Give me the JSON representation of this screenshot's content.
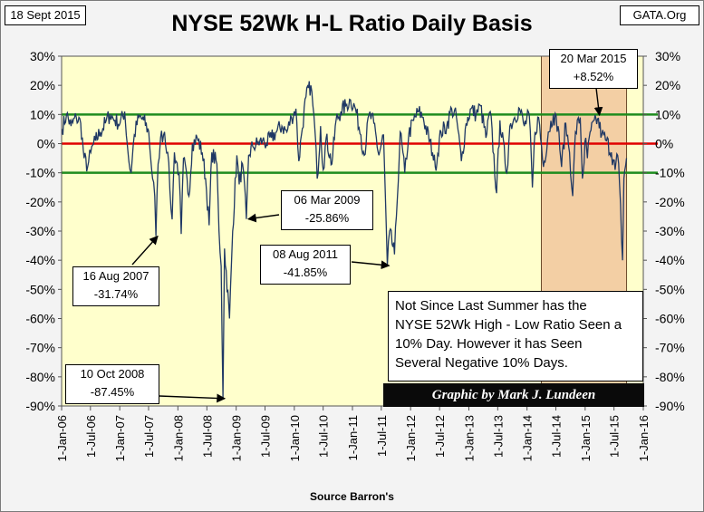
{
  "header": {
    "date": "18 Sept 2015",
    "site": "GATA.Org",
    "title": "NYSE 52Wk H-L Ratio Daily Basis",
    "source": "Source Barron's"
  },
  "annotations": {
    "a2007_date": "16 Aug 2007",
    "a2007_value": "-31.74%",
    "a2008_date": "10 Oct 2008",
    "a2008_value": "-87.45%",
    "a2009_date": "06 Mar 2009",
    "a2009_value": "-25.86%",
    "a2011_date": "08 Aug 2011",
    "a2011_value": "-41.85%",
    "a2015_date": "20 Mar 2015",
    "a2015_value": "+8.52%",
    "note_lines": [
      "Not Since Last Summer  has the",
      "NYSE 52Wk High - Low Ratio Seen a",
      "10% Day.  However it has Seen",
      "Several  Negative 10% Days."
    ],
    "credit": "Graphic by Mark J. Lundeen"
  },
  "colors": {
    "plot_bg": "#ffffcc",
    "shade_bg": "#f3cfa4",
    "series": "#1f3864",
    "zero_line": "#e00000",
    "ten_line": "#1e8c1e",
    "frame_bg": "#f3f3f3"
  },
  "chart_data": {
    "type": "line",
    "title": "NYSE 52Wk H-L Ratio Daily Basis",
    "xlabel": "",
    "ylabel": "",
    "x_unit": "date",
    "ylim": [
      -90,
      30
    ],
    "yticks": [
      30,
      20,
      10,
      0,
      -10,
      -20,
      -30,
      -40,
      -50,
      -60,
      -70,
      -80,
      -90
    ],
    "ytick_labels": [
      "30%",
      "20%",
      "10%",
      "0%",
      "-10%",
      "-20%",
      "-30%",
      "-40%",
      "-50%",
      "-60%",
      "-70%",
      "-80%",
      "-90%"
    ],
    "xlim": [
      "2006-01-01",
      "2016-01-01"
    ],
    "xticks": [
      "2006-01-01",
      "2006-07-01",
      "2007-01-01",
      "2007-07-01",
      "2008-01-01",
      "2008-07-01",
      "2009-01-01",
      "2009-07-01",
      "2010-01-01",
      "2010-07-01",
      "2011-01-01",
      "2011-07-01",
      "2012-01-01",
      "2012-07-01",
      "2013-01-01",
      "2013-07-01",
      "2014-01-01",
      "2014-07-01",
      "2015-01-01",
      "2015-07-01",
      "2016-01-01"
    ],
    "xtick_labels": [
      "1-Jan-06",
      "1-Jul-06",
      "1-Jan-07",
      "1-Jul-07",
      "1-Jan-08",
      "1-Jul-08",
      "1-Jan-09",
      "1-Jul-09",
      "1-Jan-10",
      "1-Jul-10",
      "1-Jan-11",
      "1-Jul-11",
      "1-Jan-12",
      "1-Jul-12",
      "1-Jan-13",
      "1-Jul-13",
      "1-Jan-14",
      "1-Jul-14",
      "1-Jan-15",
      "1-Jul-15",
      "1-Jan-16"
    ],
    "reference_lines": [
      {
        "y": 10,
        "color": "#1e8c1e"
      },
      {
        "y": 0,
        "color": "#e00000"
      },
      {
        "y": -10,
        "color": "#1e8c1e"
      }
    ],
    "shaded_region": {
      "from": "2014-04-01",
      "to": "2015-09-18",
      "color": "#f3cfa4"
    },
    "series": [
      {
        "color": "#1f3864",
        "points": [
          [
            "2006-01-03",
            5
          ],
          [
            "2006-02-01",
            10
          ],
          [
            "2006-03-01",
            6
          ],
          [
            "2006-04-03",
            9
          ],
          [
            "2006-05-01",
            7
          ],
          [
            "2006-05-22",
            -5
          ],
          [
            "2006-06-13",
            -8
          ],
          [
            "2006-07-03",
            -3
          ],
          [
            "2006-08-01",
            1
          ],
          [
            "2006-09-01",
            4
          ],
          [
            "2006-10-02",
            7
          ],
          [
            "2006-11-01",
            10
          ],
          [
            "2006-12-01",
            8
          ],
          [
            "2007-01-03",
            7
          ],
          [
            "2007-02-01",
            11
          ],
          [
            "2007-02-27",
            -6
          ],
          [
            "2007-03-14",
            -10
          ],
          [
            "2007-04-02",
            3
          ],
          [
            "2007-05-01",
            9
          ],
          [
            "2007-06-01",
            8
          ],
          [
            "2007-07-02",
            4
          ],
          [
            "2007-07-26",
            -12
          ],
          [
            "2007-08-09",
            -18
          ],
          [
            "2007-08-16",
            -31.74
          ],
          [
            "2007-08-30",
            -7
          ],
          [
            "2007-09-14",
            2
          ],
          [
            "2007-10-09",
            4
          ],
          [
            "2007-10-29",
            -3
          ],
          [
            "2007-11-12",
            -16
          ],
          [
            "2007-11-26",
            -26
          ],
          [
            "2007-12-10",
            -3
          ],
          [
            "2008-01-08",
            -10
          ],
          [
            "2008-01-22",
            -31
          ],
          [
            "2008-02-05",
            -5
          ],
          [
            "2008-03-10",
            -18
          ],
          [
            "2008-04-01",
            0
          ],
          [
            "2008-05-01",
            2
          ],
          [
            "2008-06-02",
            -3
          ],
          [
            "2008-06-23",
            -12
          ],
          [
            "2008-07-15",
            -28
          ],
          [
            "2008-08-01",
            -3
          ],
          [
            "2008-09-02",
            -7
          ],
          [
            "2008-09-15",
            -30
          ],
          [
            "2008-09-29",
            -42
          ],
          [
            "2008-10-10",
            -87.45
          ],
          [
            "2008-10-20",
            -36
          ],
          [
            "2008-11-20",
            -60
          ],
          [
            "2008-12-10",
            -30
          ],
          [
            "2009-01-05",
            -4
          ],
          [
            "2009-01-20",
            -14
          ],
          [
            "2009-02-10",
            -7
          ],
          [
            "2009-03-06",
            -25.86
          ],
          [
            "2009-03-20",
            -4
          ],
          [
            "2009-04-15",
            -1
          ],
          [
            "2009-05-15",
            0
          ],
          [
            "2009-06-15",
            1
          ],
          [
            "2009-07-10",
            0
          ],
          [
            "2009-08-10",
            2
          ],
          [
            "2009-09-10",
            4
          ],
          [
            "2009-10-15",
            6
          ],
          [
            "2009-11-15",
            4
          ],
          [
            "2009-12-15",
            9
          ],
          [
            "2010-01-11",
            12
          ],
          [
            "2010-01-29",
            -6
          ],
          [
            "2010-02-15",
            3
          ],
          [
            "2010-03-15",
            16
          ],
          [
            "2010-04-15",
            20
          ],
          [
            "2010-05-10",
            5
          ],
          [
            "2010-05-25",
            -12
          ],
          [
            "2010-06-15",
            6
          ],
          [
            "2010-07-01",
            -9
          ],
          [
            "2010-07-20",
            2
          ],
          [
            "2010-08-25",
            -7
          ],
          [
            "2010-09-20",
            8
          ],
          [
            "2010-10-20",
            11
          ],
          [
            "2010-11-20",
            13
          ],
          [
            "2010-12-20",
            15
          ],
          [
            "2011-01-20",
            12
          ],
          [
            "2011-02-23",
            3
          ],
          [
            "2011-03-16",
            -4
          ],
          [
            "2011-04-15",
            10
          ],
          [
            "2011-05-15",
            7
          ],
          [
            "2011-06-16",
            -4
          ],
          [
            "2011-07-15",
            3
          ],
          [
            "2011-08-08",
            -41.85
          ],
          [
            "2011-08-22",
            -30
          ],
          [
            "2011-09-22",
            -38
          ],
          [
            "2011-10-04",
            -25
          ],
          [
            "2011-10-28",
            4
          ],
          [
            "2011-11-25",
            -10
          ],
          [
            "2011-12-20",
            3
          ],
          [
            "2012-01-20",
            8
          ],
          [
            "2012-02-20",
            11
          ],
          [
            "2012-03-20",
            9
          ],
          [
            "2012-05-18",
            -3
          ],
          [
            "2012-06-04",
            -8
          ],
          [
            "2012-07-10",
            4
          ],
          [
            "2012-08-15",
            6
          ],
          [
            "2012-09-15",
            12
          ],
          [
            "2012-10-15",
            9
          ],
          [
            "2012-11-15",
            -6
          ],
          [
            "2012-12-15",
            7
          ],
          [
            "2013-01-15",
            12
          ],
          [
            "2013-02-15",
            10
          ],
          [
            "2013-03-15",
            13
          ],
          [
            "2013-04-18",
            2
          ],
          [
            "2013-05-15",
            11
          ],
          [
            "2013-06-24",
            -17
          ],
          [
            "2013-07-15",
            8
          ],
          [
            "2013-08-27",
            -10
          ],
          [
            "2013-09-15",
            6
          ],
          [
            "2013-10-15",
            9
          ],
          [
            "2013-11-15",
            12
          ],
          [
            "2013-12-15",
            6
          ],
          [
            "2014-01-15",
            10
          ],
          [
            "2014-02-04",
            -15
          ],
          [
            "2014-02-20",
            4
          ],
          [
            "2014-03-15",
            9
          ],
          [
            "2014-04-14",
            -8
          ],
          [
            "2014-05-15",
            4
          ],
          [
            "2014-06-15",
            10
          ],
          [
            "2014-07-15",
            6
          ],
          [
            "2014-08-06",
            -8
          ],
          [
            "2014-09-01",
            7
          ],
          [
            "2014-09-25",
            -3
          ],
          [
            "2014-10-15",
            -18
          ],
          [
            "2014-11-01",
            4
          ],
          [
            "2014-12-01",
            9
          ],
          [
            "2014-12-15",
            -12
          ],
          [
            "2015-01-05",
            2
          ],
          [
            "2015-01-15",
            -5
          ],
          [
            "2015-02-01",
            4
          ],
          [
            "2015-03-20",
            8.52
          ],
          [
            "2015-04-15",
            3
          ],
          [
            "2015-05-15",
            1
          ],
          [
            "2015-06-15",
            -3
          ],
          [
            "2015-07-08",
            -9
          ],
          [
            "2015-07-24",
            -4
          ],
          [
            "2015-08-05",
            -14
          ],
          [
            "2015-08-24",
            -40
          ],
          [
            "2015-09-01",
            -12
          ],
          [
            "2015-09-18",
            -5
          ]
        ]
      }
    ]
  }
}
